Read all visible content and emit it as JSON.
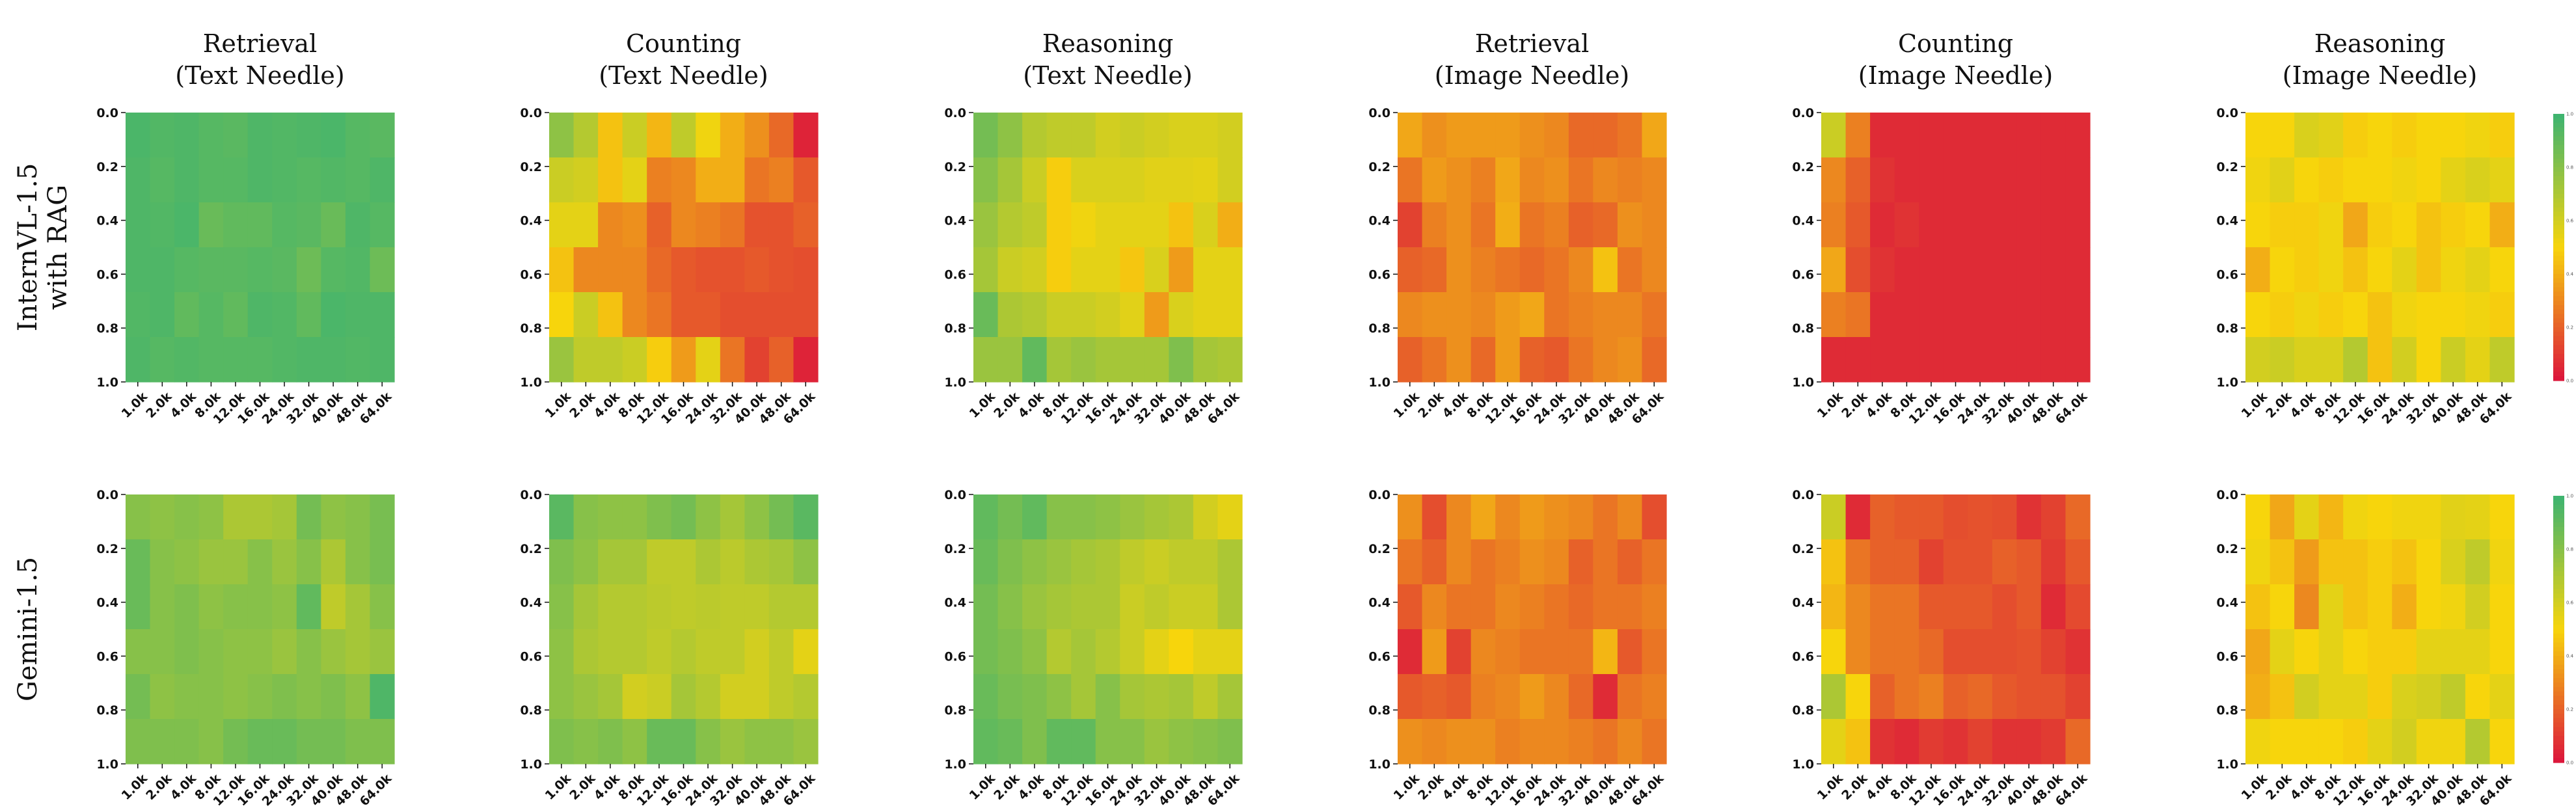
{
  "chart_data": {
    "type": "heatmap",
    "rows": [
      "InternVL-1.5\nwith RAG",
      "Gemini-1.5"
    ],
    "columns": [
      "Retrieval\n(Text Needle)",
      "Counting\n(Text Needle)",
      "Reasoning\n(Text Needle)",
      "Retrieval\n(Image Needle)",
      "Counting\n(Image Needle)",
      "Reasoning\n(Image Needle)"
    ],
    "x_ticks": [
      "1.0k",
      "2.0k",
      "4.0k",
      "8.0k",
      "12.0k",
      "16.0k",
      "24.0k",
      "32.0k",
      "40.0k",
      "48.0k",
      "64.0k"
    ],
    "y_ticks": [
      "0.0",
      "0.2",
      "0.4",
      "0.6",
      "0.8",
      "1.0"
    ],
    "colorbar": {
      "range": [
        0,
        1
      ],
      "ticks": [
        "0.0",
        "0.2",
        "0.4",
        "0.6",
        "0.8",
        "1.0"
      ],
      "colors": [
        "#dc143c",
        "#f7d50c",
        "#3cb371"
      ]
    },
    "panels": [
      [
        [
          [
            0.96,
            0.94,
            0.95,
            0.93,
            0.92,
            0.95,
            0.94,
            0.95,
            0.96,
            0.93,
            0.92
          ],
          [
            0.95,
            0.93,
            0.95,
            0.93,
            0.93,
            0.95,
            0.94,
            0.93,
            0.94,
            0.93,
            0.95
          ],
          [
            0.95,
            0.94,
            0.96,
            0.88,
            0.9,
            0.9,
            0.93,
            0.92,
            0.88,
            0.95,
            0.93
          ],
          [
            0.95,
            0.95,
            0.93,
            0.92,
            0.92,
            0.93,
            0.92,
            0.87,
            0.93,
            0.94,
            0.87
          ],
          [
            0.94,
            0.95,
            0.9,
            0.93,
            0.9,
            0.95,
            0.94,
            0.9,
            0.96,
            0.95,
            0.95
          ],
          [
            0.95,
            0.93,
            0.94,
            0.93,
            0.93,
            0.93,
            0.94,
            0.95,
            0.95,
            0.94,
            0.95
          ]
        ],
        [
          [
            0.78,
            0.68,
            0.45,
            0.62,
            0.42,
            0.65,
            0.52,
            0.4,
            0.32,
            0.22,
            0.04
          ],
          [
            0.62,
            0.6,
            0.45,
            0.55,
            0.28,
            0.3,
            0.4,
            0.4,
            0.25,
            0.28,
            0.18
          ],
          [
            0.55,
            0.55,
            0.3,
            0.32,
            0.2,
            0.3,
            0.28,
            0.25,
            0.16,
            0.16,
            0.2
          ],
          [
            0.45,
            0.3,
            0.3,
            0.3,
            0.22,
            0.18,
            0.16,
            0.16,
            0.18,
            0.16,
            0.15
          ],
          [
            0.5,
            0.62,
            0.45,
            0.3,
            0.25,
            0.18,
            0.18,
            0.15,
            0.15,
            0.15,
            0.15
          ],
          [
            0.75,
            0.65,
            0.65,
            0.62,
            0.48,
            0.35,
            0.55,
            0.25,
            0.12,
            0.2,
            0.04
          ]
        ],
        [
          [
            0.85,
            0.78,
            0.68,
            0.65,
            0.65,
            0.6,
            0.62,
            0.6,
            0.58,
            0.58,
            0.6
          ],
          [
            0.8,
            0.72,
            0.62,
            0.48,
            0.58,
            0.58,
            0.58,
            0.56,
            0.56,
            0.55,
            0.6
          ],
          [
            0.75,
            0.68,
            0.65,
            0.48,
            0.52,
            0.55,
            0.55,
            0.55,
            0.45,
            0.58,
            0.4
          ],
          [
            0.72,
            0.62,
            0.6,
            0.48,
            0.55,
            0.55,
            0.46,
            0.58,
            0.35,
            0.55,
            0.55
          ],
          [
            0.88,
            0.7,
            0.68,
            0.62,
            0.62,
            0.6,
            0.56,
            0.35,
            0.58,
            0.55,
            0.55
          ],
          [
            0.75,
            0.75,
            0.9,
            0.72,
            0.75,
            0.72,
            0.72,
            0.72,
            0.82,
            0.72,
            0.7
          ]
        ],
        [
          [
            0.38,
            0.32,
            0.35,
            0.35,
            0.35,
            0.32,
            0.3,
            0.22,
            0.22,
            0.25,
            0.38
          ],
          [
            0.25,
            0.35,
            0.32,
            0.28,
            0.38,
            0.3,
            0.32,
            0.25,
            0.3,
            0.28,
            0.3
          ],
          [
            0.12,
            0.28,
            0.32,
            0.25,
            0.4,
            0.25,
            0.28,
            0.2,
            0.22,
            0.32,
            0.3
          ],
          [
            0.2,
            0.22,
            0.32,
            0.28,
            0.25,
            0.22,
            0.25,
            0.3,
            0.45,
            0.25,
            0.3
          ],
          [
            0.3,
            0.32,
            0.32,
            0.3,
            0.35,
            0.38,
            0.25,
            0.28,
            0.3,
            0.3,
            0.25
          ],
          [
            0.2,
            0.25,
            0.32,
            0.22,
            0.35,
            0.2,
            0.18,
            0.25,
            0.3,
            0.32,
            0.22
          ]
        ],
        [
          [
            0.62,
            0.28,
            0.06,
            0.06,
            0.06,
            0.06,
            0.06,
            0.06,
            0.06,
            0.06,
            0.06
          ],
          [
            0.3,
            0.2,
            0.08,
            0.06,
            0.06,
            0.06,
            0.06,
            0.06,
            0.06,
            0.06,
            0.06
          ],
          [
            0.28,
            0.18,
            0.06,
            0.08,
            0.06,
            0.06,
            0.06,
            0.06,
            0.06,
            0.06,
            0.06
          ],
          [
            0.38,
            0.15,
            0.08,
            0.06,
            0.06,
            0.06,
            0.06,
            0.06,
            0.06,
            0.06,
            0.06
          ],
          [
            0.28,
            0.25,
            0.06,
            0.06,
            0.06,
            0.06,
            0.06,
            0.06,
            0.06,
            0.06,
            0.06
          ],
          [
            0.06,
            0.06,
            0.06,
            0.06,
            0.06,
            0.06,
            0.06,
            0.06,
            0.06,
            0.06,
            0.06
          ]
        ],
        [
          [
            0.5,
            0.5,
            0.58,
            0.56,
            0.48,
            0.5,
            0.48,
            0.5,
            0.5,
            0.52,
            0.48
          ],
          [
            0.52,
            0.56,
            0.5,
            0.48,
            0.5,
            0.5,
            0.52,
            0.5,
            0.55,
            0.58,
            0.55
          ],
          [
            0.5,
            0.48,
            0.48,
            0.52,
            0.38,
            0.48,
            0.5,
            0.45,
            0.48,
            0.5,
            0.4
          ],
          [
            0.4,
            0.5,
            0.48,
            0.52,
            0.45,
            0.5,
            0.55,
            0.45,
            0.52,
            0.55,
            0.5
          ],
          [
            0.5,
            0.48,
            0.52,
            0.48,
            0.5,
            0.45,
            0.52,
            0.5,
            0.5,
            0.52,
            0.48
          ],
          [
            0.6,
            0.62,
            0.58,
            0.58,
            0.68,
            0.45,
            0.6,
            0.5,
            0.62,
            0.55,
            0.65
          ]
        ]
      ],
      [
        [
          [
            0.8,
            0.78,
            0.8,
            0.78,
            0.7,
            0.7,
            0.72,
            0.85,
            0.78,
            0.8,
            0.84
          ],
          [
            0.88,
            0.8,
            0.78,
            0.75,
            0.75,
            0.8,
            0.75,
            0.8,
            0.7,
            0.8,
            0.84
          ],
          [
            0.88,
            0.8,
            0.82,
            0.78,
            0.8,
            0.8,
            0.78,
            0.9,
            0.65,
            0.72,
            0.8
          ],
          [
            0.8,
            0.8,
            0.82,
            0.8,
            0.78,
            0.78,
            0.75,
            0.8,
            0.75,
            0.72,
            0.75
          ],
          [
            0.85,
            0.78,
            0.8,
            0.8,
            0.78,
            0.8,
            0.82,
            0.8,
            0.82,
            0.78,
            0.95
          ],
          [
            0.82,
            0.82,
            0.82,
            0.8,
            0.85,
            0.88,
            0.88,
            0.85,
            0.85,
            0.82,
            0.82
          ]
        ],
        [
          [
            0.92,
            0.8,
            0.78,
            0.78,
            0.82,
            0.85,
            0.78,
            0.72,
            0.78,
            0.85,
            0.92
          ],
          [
            0.82,
            0.78,
            0.72,
            0.72,
            0.65,
            0.65,
            0.7,
            0.66,
            0.7,
            0.72,
            0.78
          ],
          [
            0.8,
            0.72,
            0.68,
            0.68,
            0.66,
            0.65,
            0.66,
            0.65,
            0.65,
            0.68,
            0.68
          ],
          [
            0.78,
            0.7,
            0.68,
            0.68,
            0.65,
            0.68,
            0.65,
            0.65,
            0.6,
            0.65,
            0.55
          ],
          [
            0.78,
            0.75,
            0.72,
            0.6,
            0.62,
            0.72,
            0.68,
            0.6,
            0.6,
            0.65,
            0.68
          ],
          [
            0.82,
            0.8,
            0.82,
            0.78,
            0.88,
            0.88,
            0.8,
            0.75,
            0.78,
            0.78,
            0.75
          ]
        ],
        [
          [
            0.9,
            0.85,
            0.9,
            0.8,
            0.8,
            0.78,
            0.75,
            0.72,
            0.7,
            0.6,
            0.55
          ],
          [
            0.88,
            0.82,
            0.78,
            0.75,
            0.72,
            0.7,
            0.65,
            0.62,
            0.65,
            0.65,
            0.7
          ],
          [
            0.85,
            0.8,
            0.75,
            0.72,
            0.7,
            0.7,
            0.62,
            0.65,
            0.62,
            0.62,
            0.7
          ],
          [
            0.85,
            0.82,
            0.78,
            0.68,
            0.72,
            0.68,
            0.62,
            0.55,
            0.5,
            0.55,
            0.55
          ],
          [
            0.88,
            0.84,
            0.82,
            0.78,
            0.72,
            0.8,
            0.72,
            0.7,
            0.72,
            0.65,
            0.72
          ],
          [
            0.9,
            0.88,
            0.82,
            0.9,
            0.9,
            0.8,
            0.8,
            0.75,
            0.78,
            0.8,
            0.82
          ]
        ],
        [
          [
            0.32,
            0.15,
            0.3,
            0.38,
            0.3,
            0.35,
            0.32,
            0.3,
            0.25,
            0.3,
            0.15
          ],
          [
            0.25,
            0.2,
            0.3,
            0.25,
            0.28,
            0.32,
            0.3,
            0.2,
            0.25,
            0.2,
            0.25
          ],
          [
            0.18,
            0.3,
            0.25,
            0.25,
            0.3,
            0.28,
            0.25,
            0.22,
            0.25,
            0.25,
            0.28
          ],
          [
            0.06,
            0.35,
            0.12,
            0.3,
            0.28,
            0.25,
            0.25,
            0.25,
            0.42,
            0.18,
            0.25
          ],
          [
            0.18,
            0.2,
            0.18,
            0.28,
            0.3,
            0.35,
            0.3,
            0.22,
            0.06,
            0.25,
            0.28
          ],
          [
            0.32,
            0.3,
            0.32,
            0.32,
            0.28,
            0.3,
            0.3,
            0.28,
            0.25,
            0.3,
            0.25
          ]
        ],
        [
          [
            0.62,
            0.06,
            0.2,
            0.18,
            0.18,
            0.15,
            0.16,
            0.15,
            0.08,
            0.12,
            0.22
          ],
          [
            0.45,
            0.25,
            0.2,
            0.2,
            0.12,
            0.16,
            0.16,
            0.2,
            0.18,
            0.1,
            0.18
          ],
          [
            0.42,
            0.3,
            0.25,
            0.25,
            0.18,
            0.18,
            0.18,
            0.15,
            0.18,
            0.06,
            0.14
          ],
          [
            0.5,
            0.3,
            0.25,
            0.25,
            0.22,
            0.15,
            0.15,
            0.15,
            0.16,
            0.12,
            0.08
          ],
          [
            0.7,
            0.5,
            0.2,
            0.25,
            0.28,
            0.2,
            0.22,
            0.18,
            0.16,
            0.16,
            0.12
          ],
          [
            0.55,
            0.45,
            0.08,
            0.06,
            0.1,
            0.08,
            0.12,
            0.08,
            0.08,
            0.1,
            0.22
          ]
        ],
        [
          [
            0.5,
            0.38,
            0.55,
            0.42,
            0.52,
            0.5,
            0.52,
            0.52,
            0.56,
            0.55,
            0.5
          ],
          [
            0.52,
            0.45,
            0.35,
            0.45,
            0.45,
            0.48,
            0.45,
            0.5,
            0.58,
            0.65,
            0.52
          ],
          [
            0.45,
            0.5,
            0.3,
            0.55,
            0.45,
            0.48,
            0.4,
            0.5,
            0.52,
            0.6,
            0.5
          ],
          [
            0.38,
            0.55,
            0.5,
            0.55,
            0.5,
            0.48,
            0.48,
            0.55,
            0.55,
            0.55,
            0.5
          ],
          [
            0.4,
            0.45,
            0.6,
            0.55,
            0.55,
            0.48,
            0.58,
            0.6,
            0.65,
            0.5,
            0.55
          ],
          [
            0.52,
            0.5,
            0.5,
            0.5,
            0.48,
            0.55,
            0.6,
            0.52,
            0.52,
            0.68,
            0.5
          ]
        ]
      ]
    ]
  }
}
